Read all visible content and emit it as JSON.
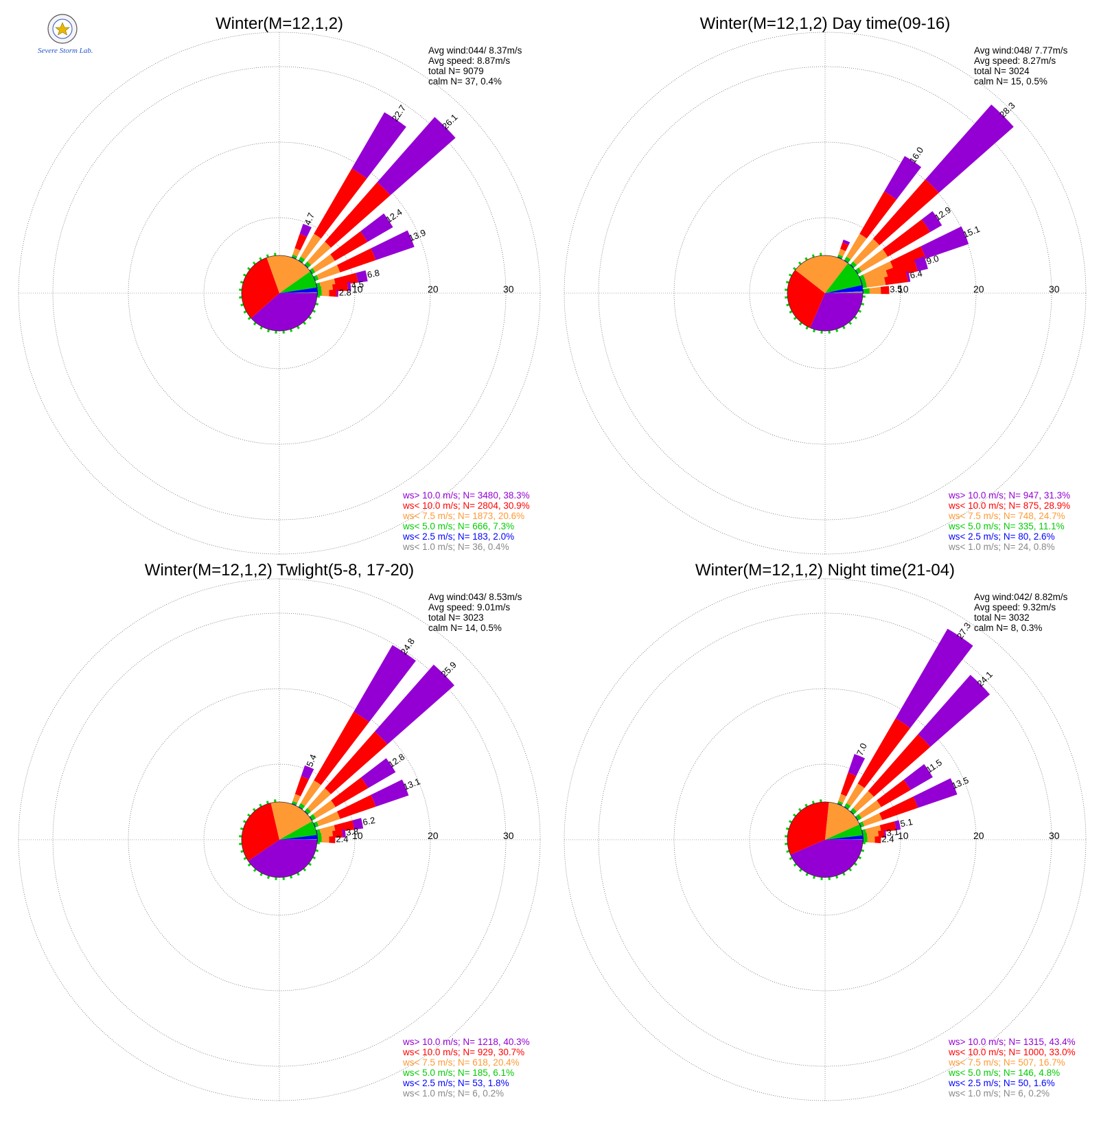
{
  "logo": {
    "text": "Severe Storm Lab."
  },
  "rings": [
    10,
    20,
    30
  ],
  "colors": {
    "gt10": "#9400d3",
    "lt10": "#ff0000",
    "lt7_5": "#ff9933",
    "lt5": "#00cc00",
    "lt2_5": "#0000ff",
    "lt1": "#888888"
  },
  "chart_data": [
    {
      "type": "wind-rose",
      "title": "Winter(M=12,1,2)",
      "info": [
        "Avg wind:044/ 8.37m/s",
        "Avg speed: 8.87m/s",
        "total N=        9079",
        "calm N=     37,   0.4%"
      ],
      "legend": [
        {
          "label": "ws> 10.0 m/s; N=  3480, 38.3%",
          "color": "#9400d3"
        },
        {
          "label": "ws< 10.0 m/s; N=  2804, 30.9%",
          "color": "#ff0000"
        },
        {
          "label": "ws<  7.5 m/s; N=  1873, 20.6%",
          "color": "#ff9933"
        },
        {
          "label": "ws<  5.0 m/s; N=   666,  7.3%",
          "color": "#00cc00"
        },
        {
          "label": "ws<  2.5 m/s; N=   183,  2.0%",
          "color": "#0000ff"
        },
        {
          "label": "ws<  1.0 m/s; N=    36,  0.4%",
          "color": "#888888"
        }
      ],
      "petals": [
        {
          "dir": 22.5,
          "total": 4.7,
          "label": "4.7",
          "parts": [
            0.1,
            0.3,
            0.9,
            2.0,
            1.4
          ]
        },
        {
          "dir": 33.75,
          "total": 22.7,
          "label": "22.7",
          "parts": [
            0.1,
            0.5,
            3.5,
            10.0,
            8.6
          ]
        },
        {
          "dir": 45,
          "total": 26.1,
          "label": "26.1",
          "parts": [
            0.1,
            0.5,
            3.5,
            10.5,
            11.5
          ]
        },
        {
          "dir": 56.25,
          "total": 12.4,
          "label": "12.4",
          "parts": [
            0.1,
            0.4,
            3.0,
            5.0,
            3.9
          ]
        },
        {
          "dir": 67.5,
          "total": 13.9,
          "label": "13.9",
          "parts": [
            0.1,
            0.4,
            3.0,
            5.0,
            5.4
          ]
        },
        {
          "dir": 78.75,
          "total": 6.8,
          "label": "6.8",
          "parts": [
            0.1,
            0.4,
            2.0,
            3.0,
            1.3
          ]
        },
        {
          "dir": 84.375,
          "total": 4.5,
          "label": "4.5",
          "parts": [
            0.1,
            0.5,
            1.5,
            2.0,
            0.4
          ]
        },
        {
          "dir": 90,
          "total": 2.8,
          "label": "2.8",
          "parts": [
            0.1,
            0.5,
            1.0,
            1.0,
            0.2
          ]
        }
      ],
      "pie": [
        38.3,
        30.9,
        20.6,
        7.3,
        2.0,
        0.4
      ]
    },
    {
      "type": "wind-rose",
      "title": "Winter(M=12,1,2) Day time(09-16)",
      "info": [
        "Avg wind:048/ 7.77m/s",
        "Avg speed: 8.27m/s",
        "total N=        3024",
        "calm N=     15,   0.5%"
      ],
      "legend": [
        {
          "label": "ws> 10.0 m/s; N=   947, 31.3%",
          "color": "#9400d3"
        },
        {
          "label": "ws< 10.0 m/s; N=   875, 28.9%",
          "color": "#ff0000"
        },
        {
          "label": "ws<  7.5 m/s; N=   748, 24.7%",
          "color": "#ff9933"
        },
        {
          "label": "ws<  5.0 m/s; N=   335, 11.1%",
          "color": "#00cc00"
        },
        {
          "label": "ws<  2.5 m/s; N=    80,  2.6%",
          "color": "#0000ff"
        },
        {
          "label": "ws<  1.0 m/s; N=    24,  0.8%",
          "color": "#888888"
        }
      ],
      "petals": [
        {
          "dir": 22.5,
          "total": 2.5,
          "label": "",
          "parts": [
            0.1,
            0.3,
            0.8,
            0.9,
            0.4
          ]
        },
        {
          "dir": 33.75,
          "total": 16.0,
          "label": "16.0",
          "parts": [
            0.1,
            0.5,
            3.5,
            6.5,
            5.4
          ]
        },
        {
          "dir": 45,
          "total": 28.3,
          "label": "28.3",
          "parts": [
            0.1,
            0.5,
            4.0,
            10.5,
            13.2
          ]
        },
        {
          "dir": 56.25,
          "total": 12.9,
          "label": "12.9",
          "parts": [
            0.1,
            0.5,
            4.0,
            6.5,
            1.8
          ]
        },
        {
          "dir": 67.5,
          "total": 15.1,
          "label": "15.1",
          "parts": [
            0.1,
            0.5,
            4.0,
            4.5,
            6.0
          ]
        },
        {
          "dir": 73.125,
          "total": 9.0,
          "label": "9.0",
          "parts": [
            0.1,
            0.5,
            3.0,
            4.0,
            1.4
          ]
        },
        {
          "dir": 78.75,
          "total": 6.4,
          "label": "6.4",
          "parts": [
            0.1,
            0.5,
            2.5,
            3.0,
            0.3
          ]
        },
        {
          "dir": 87.1875,
          "total": 3.5,
          "label": "3.5",
          "parts": [
            0.1,
            0.8,
            1.5,
            1.1,
            0.0
          ]
        }
      ],
      "pie": [
        31.3,
        28.9,
        24.7,
        11.1,
        2.6,
        0.8
      ]
    },
    {
      "type": "wind-rose",
      "title": "Winter(M=12,1,2) Twlight(5-8, 17-20)",
      "info": [
        "Avg wind:043/ 8.53m/s",
        "Avg speed: 9.01m/s",
        "total N=        3023",
        "calm N=     14,   0.5%"
      ],
      "legend": [
        {
          "label": "ws> 10.0 m/s; N=  1218, 40.3%",
          "color": "#9400d3"
        },
        {
          "label": "ws< 10.0 m/s; N=   929, 30.7%",
          "color": "#ff0000"
        },
        {
          "label": "ws<  7.5 m/s; N=   618, 20.4%",
          "color": "#ff9933"
        },
        {
          "label": "ws<  5.0 m/s; N=   185,  6.1%",
          "color": "#00cc00"
        },
        {
          "label": "ws<  2.5 m/s; N=    53,  1.8%",
          "color": "#0000ff"
        },
        {
          "label": "ws<  1.0 m/s; N=     6,  0.2%",
          "color": "#888888"
        }
      ],
      "petals": [
        {
          "dir": 22.5,
          "total": 5.4,
          "label": "5.4",
          "parts": [
            0.1,
            0.3,
            1.0,
            2.5,
            1.5
          ]
        },
        {
          "dir": 33.75,
          "total": 24.8,
          "label": "24.8",
          "parts": [
            0.1,
            0.5,
            3.5,
            10.5,
            10.2
          ]
        },
        {
          "dir": 45,
          "total": 25.9,
          "label": "25.9",
          "parts": [
            0.1,
            0.5,
            3.5,
            10.0,
            11.8
          ]
        },
        {
          "dir": 56.25,
          "total": 12.8,
          "label": "12.8",
          "parts": [
            0.1,
            0.5,
            3.0,
            5.0,
            4.2
          ]
        },
        {
          "dir": 67.5,
          "total": 13.1,
          "label": "13.1",
          "parts": [
            0.1,
            0.4,
            3.0,
            5.0,
            4.6
          ]
        },
        {
          "dir": 78.75,
          "total": 6.2,
          "label": "6.2",
          "parts": [
            0.1,
            0.4,
            2.0,
            2.5,
            1.2
          ]
        },
        {
          "dir": 84.375,
          "total": 3.8,
          "label": "3.8",
          "parts": [
            0.1,
            0.5,
            1.5,
            1.3,
            0.4
          ]
        },
        {
          "dir": 90,
          "total": 2.4,
          "label": "2.4",
          "parts": [
            0.1,
            0.5,
            1.0,
            0.8,
            0.0
          ]
        }
      ],
      "pie": [
        40.3,
        30.7,
        20.4,
        6.1,
        1.8,
        0.2
      ]
    },
    {
      "type": "wind-rose",
      "title": "Winter(M=12,1,2) Night time(21-04)",
      "info": [
        "Avg wind:042/ 8.82m/s",
        "Avg speed: 9.32m/s",
        "total N=        3032",
        "calm N=      8,   0.3%"
      ],
      "legend": [
        {
          "label": "ws> 10.0 m/s; N=  1315, 43.4%",
          "color": "#9400d3"
        },
        {
          "label": "ws< 10.0 m/s; N=  1000, 33.0%",
          "color": "#ff0000"
        },
        {
          "label": "ws<  7.5 m/s; N=   507, 16.7%",
          "color": "#ff9933"
        },
        {
          "label": "ws<  5.0 m/s; N=   146,  4.8%",
          "color": "#00cc00"
        },
        {
          "label": "ws<  2.5 m/s; N=    50,  1.6%",
          "color": "#0000ff"
        },
        {
          "label": "ws<  1.0 m/s; N=     6,  0.2%",
          "color": "#888888"
        }
      ],
      "petals": [
        {
          "dir": 22.5,
          "total": 7.0,
          "label": "7.0",
          "parts": [
            0.1,
            0.3,
            1.0,
            3.0,
            2.6
          ]
        },
        {
          "dir": 33.75,
          "total": 27.3,
          "label": "27.3",
          "parts": [
            0.1,
            0.5,
            3.0,
            10.0,
            13.7
          ]
        },
        {
          "dir": 45,
          "total": 24.1,
          "label": "24.1",
          "parts": [
            0.1,
            0.5,
            3.0,
            10.0,
            10.5
          ]
        },
        {
          "dir": 56.25,
          "total": 11.5,
          "label": "11.5",
          "parts": [
            0.1,
            0.5,
            3.0,
            4.5,
            3.4
          ]
        },
        {
          "dir": 67.5,
          "total": 13.5,
          "label": "13.5",
          "parts": [
            0.1,
            0.4,
            2.5,
            5.0,
            5.5
          ]
        },
        {
          "dir": 78.75,
          "total": 5.1,
          "label": "5.1",
          "parts": [
            0.1,
            0.4,
            2.0,
            2.0,
            0.6
          ]
        },
        {
          "dir": 84.375,
          "total": 3.1,
          "label": "3.1",
          "parts": [
            0.1,
            0.5,
            1.5,
            0.8,
            0.2
          ]
        },
        {
          "dir": 90,
          "total": 2.4,
          "label": "2.4",
          "parts": [
            0.1,
            0.5,
            1.0,
            0.8,
            0.0
          ]
        }
      ],
      "pie": [
        43.4,
        33.0,
        16.7,
        4.8,
        1.6,
        0.2
      ]
    }
  ]
}
